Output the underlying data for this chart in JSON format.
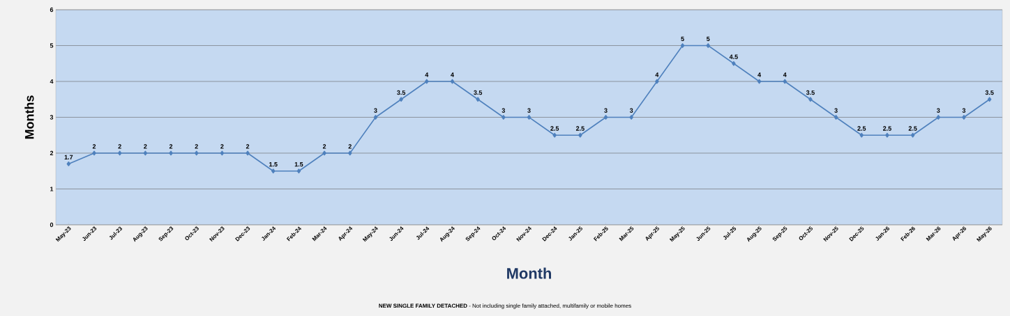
{
  "chart_data": {
    "type": "line",
    "xlabel": "Month",
    "ylabel": "Months",
    "categories": [
      "May-23",
      "Jun-23",
      "Jul-23",
      "Aug-23",
      "Sep-23",
      "Oct-23",
      "Nov-23",
      "Dec-23",
      "Jan-24",
      "Feb-24",
      "Mar-24",
      "Apr-24",
      "May-24",
      "Jun-24",
      "Jul-24",
      "Aug-24",
      "Sep-24",
      "Oct-24",
      "Nov-24",
      "Dec-24",
      "Jan-25",
      "Feb-25",
      "Mar-25",
      "Apr-25",
      "May-25",
      "Jun-25",
      "Jul-25",
      "Aug-25",
      "Sep-25",
      "Oct-25",
      "Nov-25",
      "Dec-25",
      "Jan-26",
      "Feb-26",
      "Mar-26",
      "Apr-26",
      "May-26"
    ],
    "values": [
      1.7,
      2,
      2,
      2,
      2,
      2,
      2,
      2,
      1.5,
      1.5,
      2,
      2,
      3,
      3.5,
      4,
      4,
      3.5,
      3,
      3,
      2.5,
      2.5,
      3,
      3,
      4,
      5,
      5,
      4.5,
      4,
      4,
      3.5,
      3,
      2.5,
      2.5,
      2.5,
      3,
      3,
      3.5
    ],
    "color": "#4f81bd",
    "marker": "diamond",
    "line_style": "solid",
    "data_labels": true,
    "grid": "y",
    "ylim": [
      0,
      6
    ],
    "yticks": [
      0,
      1,
      2,
      3,
      4,
      5,
      6
    ],
    "annotations": [
      "**NEW SINGLE FAMILY DETACHED** - Not including single family attached, multifamily or mobile homes"
    ]
  }
}
